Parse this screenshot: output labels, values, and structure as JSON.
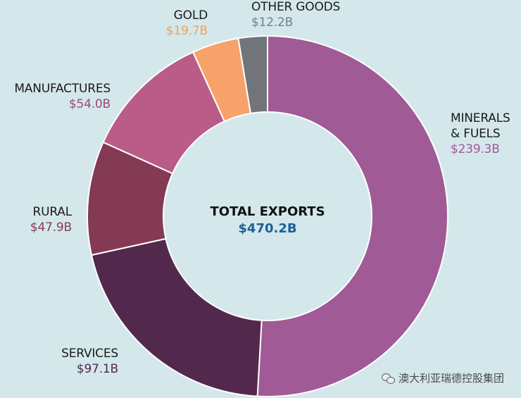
{
  "chart_data": {
    "type": "pie",
    "title": "",
    "center_label": "TOTAL EXPORTS",
    "center_value": "$470.2B",
    "total": 470.2,
    "slices": [
      {
        "label": "MINERALS & FUELS",
        "label_lines": [
          "MINERALS",
          "& FUELS"
        ],
        "value": 239.3,
        "value_label": "$239.3B",
        "color": "#a05a96",
        "label_color": "#a05a96"
      },
      {
        "label": "SERVICES",
        "label_lines": [
          "SERVICES"
        ],
        "value": 97.1,
        "value_label": "$97.1B",
        "color": "#52294d",
        "label_color": "#52294d"
      },
      {
        "label": "RURAL",
        "label_lines": [
          "RURAL"
        ],
        "value": 47.9,
        "value_label": "$47.9B",
        "color": "#833a52",
        "label_color": "#8a3a58"
      },
      {
        "label": "MANUFACTURES",
        "label_lines": [
          "MANUFACTURES"
        ],
        "value": 54.0,
        "value_label": "$54.0B",
        "color": "#b95c88",
        "label_color": "#9a4a78"
      },
      {
        "label": "GOLD",
        "label_lines": [
          "GOLD"
        ],
        "value": 19.7,
        "value_label": "$19.7B",
        "color": "#f7a26b",
        "label_color": "#f0a060"
      },
      {
        "label": "OTHER GOODS",
        "label_lines": [
          "OTHER GOODS"
        ],
        "value": 12.2,
        "value_label": "$12.2B",
        "color": "#717478",
        "label_color": "#7a7e84"
      }
    ]
  },
  "watermark": {
    "text": "澳大利亚瑞德控股集团",
    "icon": "wechat-icon"
  }
}
